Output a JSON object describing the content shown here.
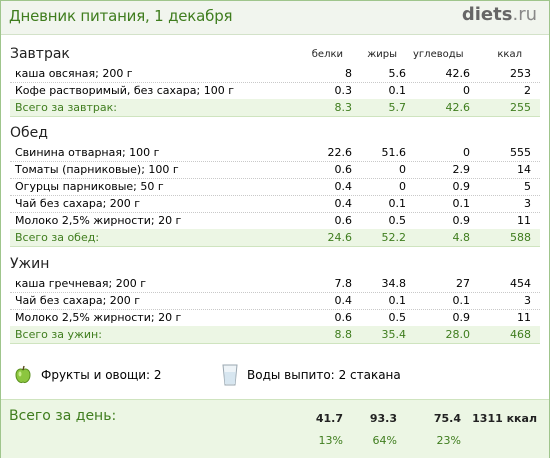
{
  "header": {
    "title": "Дневник питания, 1 декабря",
    "logo_main": "diets",
    "logo_tld": ".ru"
  },
  "columns": {
    "protein": "белки",
    "fat": "жиры",
    "carbs": "углеводы",
    "kcal": "ккал"
  },
  "meals": [
    {
      "title": "Завтрак",
      "items": [
        {
          "name": "каша овсяная; 200 г",
          "protein": "8",
          "fat": "5.6",
          "carbs": "42.6",
          "kcal": "253"
        },
        {
          "name": "Кофе растворимый, без сахара; 100 г",
          "protein": "0.3",
          "fat": "0.1",
          "carbs": "0",
          "kcal": "2"
        }
      ],
      "total": {
        "label": "Всего за завтрак:",
        "protein": "8.3",
        "fat": "5.7",
        "carbs": "42.6",
        "kcal": "255"
      }
    },
    {
      "title": "Обед",
      "items": [
        {
          "name": "Свинина отварная; 100 г",
          "protein": "22.6",
          "fat": "51.6",
          "carbs": "0",
          "kcal": "555"
        },
        {
          "name": "Томаты (парниковые); 100 г",
          "protein": "0.6",
          "fat": "0",
          "carbs": "2.9",
          "kcal": "14"
        },
        {
          "name": "Огурцы парниковые; 50 г",
          "protein": "0.4",
          "fat": "0",
          "carbs": "0.9",
          "kcal": "5"
        },
        {
          "name": "Чай без сахара; 200 г",
          "protein": "0.4",
          "fat": "0.1",
          "carbs": "0.1",
          "kcal": "3"
        },
        {
          "name": "Молоко 2,5% жирности; 20 г",
          "protein": "0.6",
          "fat": "0.5",
          "carbs": "0.9",
          "kcal": "11"
        }
      ],
      "total": {
        "label": "Всего за обед:",
        "protein": "24.6",
        "fat": "52.2",
        "carbs": "4.8",
        "kcal": "588"
      }
    },
    {
      "title": "Ужин",
      "items": [
        {
          "name": "каша гречневая; 200 г",
          "protein": "7.8",
          "fat": "34.8",
          "carbs": "27",
          "kcal": "454"
        },
        {
          "name": "Чай без сахара; 200 г",
          "protein": "0.4",
          "fat": "0.1",
          "carbs": "0.1",
          "kcal": "3"
        },
        {
          "name": "Молоко 2,5% жирности; 20 г",
          "protein": "0.6",
          "fat": "0.5",
          "carbs": "0.9",
          "kcal": "11"
        }
      ],
      "total": {
        "label": "Всего за ужин:",
        "protein": "8.8",
        "fat": "35.4",
        "carbs": "28.0",
        "kcal": "468"
      }
    }
  ],
  "extras": {
    "fruits_label": "Фрукты и овощи:",
    "fruits_value": "2",
    "water_label": "Воды выпито:",
    "water_value": "2 стакана",
    "icons": [
      "apple-icon",
      "glass-icon"
    ]
  },
  "day_total": {
    "label": "Всего за день:",
    "protein": "41.7",
    "fat": "93.3",
    "carbs": "75.4",
    "kcal": "1311 ккал",
    "protein_pct": "13%",
    "fat_pct": "64%",
    "carbs_pct": "23%"
  },
  "colors": {
    "accent": "#3f7d1e",
    "total_bg": "#ecf6e4",
    "border": "#9fc58c"
  }
}
